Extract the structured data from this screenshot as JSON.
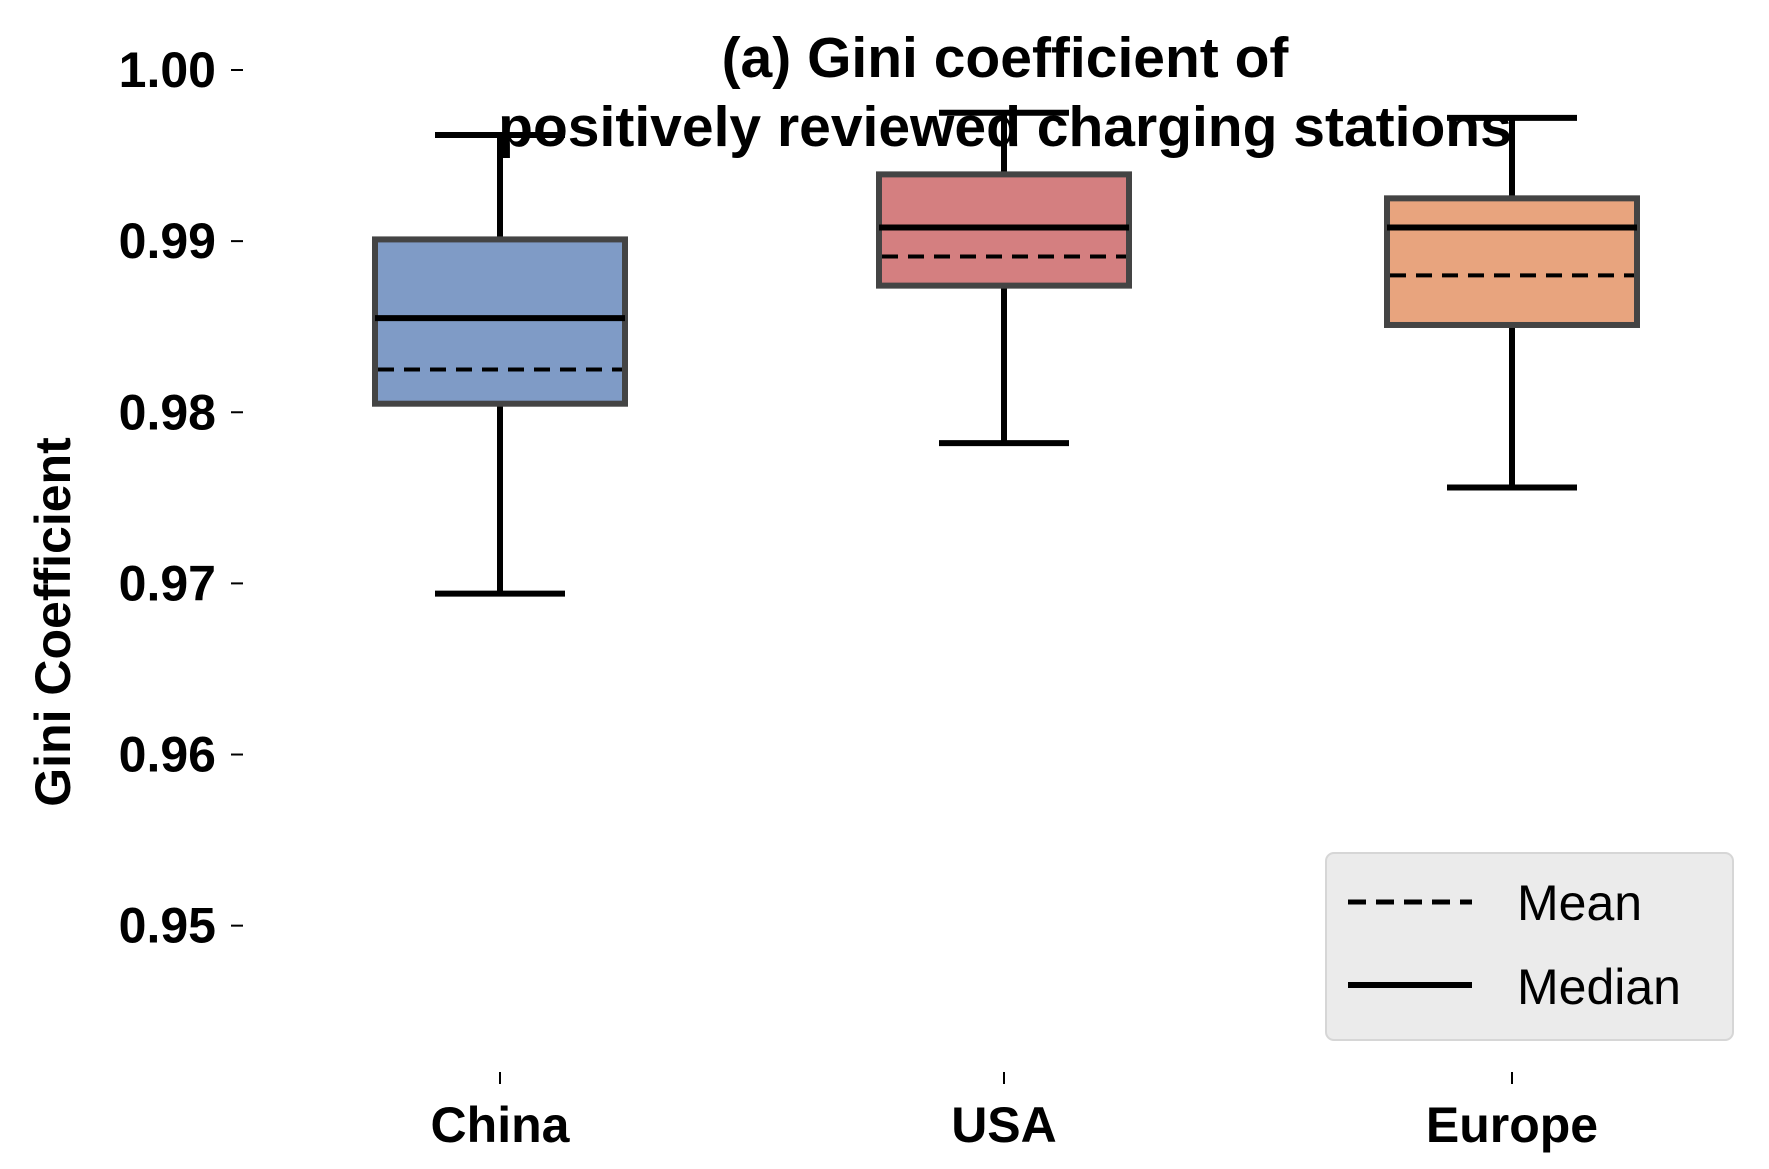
{
  "chart_data": {
    "type": "box",
    "title_lines": [
      "(a) Gini coefficient of",
      "positively reviewed charging stations"
    ],
    "ylabel": "Gini Coefficient",
    "xlabel": "",
    "ylim": [
      0.9425,
      1.0
    ],
    "yticks": [
      0.95,
      0.96,
      0.97,
      0.98,
      0.99,
      1.0
    ],
    "ytick_labels": [
      "0.95",
      "0.96",
      "0.97",
      "0.98",
      "0.99",
      "1.00"
    ],
    "categories": [
      "China",
      "USA",
      "Europe"
    ],
    "boxes": [
      {
        "category": "China",
        "whisker_low": 0.9694,
        "q1": 0.9805,
        "median": 0.9855,
        "mean": 0.9825,
        "q3": 0.9901,
        "whisker_high": 0.9962,
        "color": "#7f9bc6"
      },
      {
        "category": "USA",
        "whisker_low": 0.9782,
        "q1": 0.9874,
        "median": 0.9908,
        "mean": 0.9891,
        "q3": 0.9939,
        "whisker_high": 0.9975,
        "color": "#d47f80"
      },
      {
        "category": "Europe",
        "whisker_low": 0.9756,
        "q1": 0.9851,
        "median": 0.9908,
        "mean": 0.988,
        "q3": 0.9925,
        "whisker_high": 0.9972,
        "color": "#e8a47e"
      }
    ],
    "legend": {
      "position": "bottom-right",
      "entries": [
        {
          "label": "Mean",
          "style": "dashed"
        },
        {
          "label": "Median",
          "style": "solid"
        }
      ]
    },
    "grid": false
  }
}
